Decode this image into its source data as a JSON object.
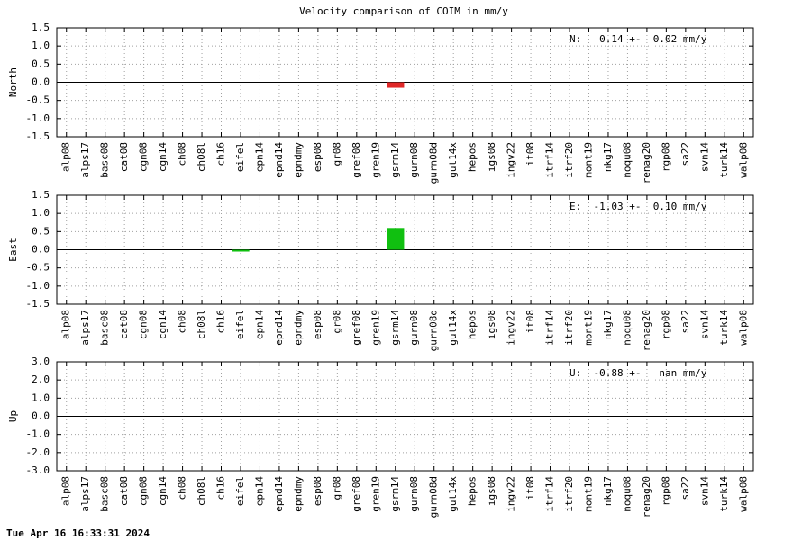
{
  "title": "Velocity comparison of COIM in mm/y",
  "timestamp": "Tue Apr 16 16:33:31 2024",
  "chart_data": [
    {
      "type": "bar",
      "ylabel": "North",
      "annotation": "N:   0.14 +-  0.02 mm/y",
      "color": "#e02828",
      "grid": true,
      "categories": [
        "alp08",
        "alps17",
        "basc08",
        "cat08",
        "cgn08",
        "cgn14",
        "ch08",
        "ch08l",
        "ch16",
        "eifel",
        "epn14",
        "epnd14",
        "epndmy",
        "esp08",
        "gr08",
        "gref08",
        "gren19",
        "gsrm14",
        "gurn08",
        "gurn08d",
        "gut14x",
        "hepos",
        "igs08",
        "ingv22",
        "it08",
        "itrf14",
        "itrf20",
        "mont19",
        "nkg17",
        "noqu08",
        "renag20",
        "rgp08",
        "sa22",
        "svn14",
        "turk14",
        "walp08"
      ],
      "values": [
        null,
        null,
        null,
        null,
        null,
        null,
        null,
        null,
        null,
        null,
        null,
        null,
        null,
        null,
        null,
        null,
        null,
        -0.15,
        null,
        null,
        null,
        null,
        null,
        null,
        null,
        null,
        null,
        null,
        null,
        null,
        null,
        null,
        null,
        null,
        null,
        null
      ],
      "ylim": [
        -1.5,
        1.5
      ],
      "yticks": [
        -1.5,
        {
          "value": -1,
          "label": "-1.0"
        },
        -0.5,
        {
          "value": 0,
          "label": "0.0"
        },
        0.5,
        {
          "value": 1,
          "label": "1.0"
        },
        1.5
      ]
    },
    {
      "type": "bar",
      "ylabel": "East",
      "annotation": "E:  -1.03 +-  0.10 mm/y",
      "color": "#10c010",
      "grid": true,
      "categories": [
        "alp08",
        "alps17",
        "basc08",
        "cat08",
        "cgn08",
        "cgn14",
        "ch08",
        "ch08l",
        "ch16",
        "eifel",
        "epn14",
        "epnd14",
        "epndmy",
        "esp08",
        "gr08",
        "gref08",
        "gren19",
        "gsrm14",
        "gurn08",
        "gurn08d",
        "gut14x",
        "hepos",
        "igs08",
        "ingv22",
        "it08",
        "itrf14",
        "itrf20",
        "mont19",
        "nkg17",
        "noqu08",
        "renag20",
        "rgp08",
        "sa22",
        "svn14",
        "turk14",
        "walp08"
      ],
      "values": [
        null,
        null,
        null,
        null,
        null,
        null,
        null,
        null,
        null,
        -0.05,
        null,
        null,
        null,
        null,
        null,
        null,
        null,
        0.6,
        null,
        null,
        null,
        null,
        null,
        null,
        null,
        null,
        null,
        null,
        null,
        null,
        null,
        null,
        null,
        null,
        null,
        null
      ],
      "ylim": [
        -1.5,
        1.5
      ],
      "yticks": [
        -1.5,
        {
          "value": -1,
          "label": "-1.0"
        },
        -0.5,
        {
          "value": 0,
          "label": "0.0"
        },
        0.5,
        {
          "value": 1,
          "label": "1.0"
        },
        1.5
      ]
    },
    {
      "type": "bar",
      "ylabel": "Up",
      "annotation": "U:  -0.88 +-   nan mm/y",
      "grid": true,
      "categories": [
        "alp08",
        "alps17",
        "basc08",
        "cat08",
        "cgn08",
        "cgn14",
        "ch08",
        "ch08l",
        "ch16",
        "eifel",
        "epn14",
        "epnd14",
        "epndmy",
        "esp08",
        "gr08",
        "gref08",
        "gren19",
        "gsrm14",
        "gurn08",
        "gurn08d",
        "gut14x",
        "hepos",
        "igs08",
        "ingv22",
        "it08",
        "itrf14",
        "itrf20",
        "mont19",
        "nkg17",
        "noqu08",
        "renag20",
        "rgp08",
        "sa22",
        "svn14",
        "turk14",
        "walp08"
      ],
      "values": [
        null,
        null,
        null,
        null,
        null,
        null,
        null,
        null,
        null,
        null,
        null,
        null,
        null,
        null,
        null,
        null,
        null,
        null,
        null,
        null,
        null,
        null,
        null,
        null,
        null,
        null,
        null,
        null,
        null,
        null,
        null,
        null,
        null,
        null,
        null,
        null
      ],
      "ylim": [
        -3,
        3
      ],
      "yticks": [
        {
          "value": -3,
          "label": "-3.0"
        },
        {
          "value": -2,
          "label": "-2.0"
        },
        {
          "value": -1,
          "label": "-1.0"
        },
        {
          "value": 0,
          "label": "0.0"
        },
        {
          "value": 1,
          "label": "1.0"
        },
        {
          "value": 2,
          "label": "2.0"
        },
        {
          "value": 3,
          "label": "3.0"
        }
      ]
    }
  ]
}
